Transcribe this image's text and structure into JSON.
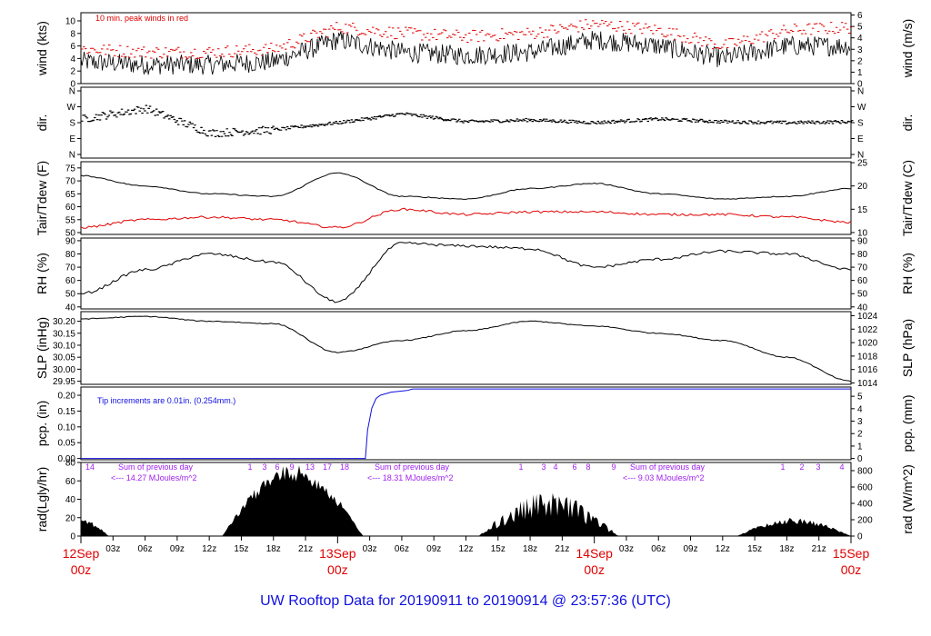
{
  "title": "UW Rooftop Data for 20190911  to  20190914 @ 23:57:36  (UTC)",
  "colors": {
    "black": "#000000",
    "red": "#e00000",
    "blue": "#1010e0",
    "purple": "#a020f0",
    "title": "#1010e0"
  },
  "x_axis": {
    "hour_ticks": [
      "03z",
      "06z",
      "09z",
      "12z",
      "15z",
      "18z",
      "21z",
      "03z",
      "06z",
      "09z",
      "12z",
      "15z",
      "18z",
      "21z",
      "03z",
      "06z",
      "09z",
      "12z",
      "15z",
      "18z",
      "21z"
    ],
    "day_ticks": [
      {
        "date": "12Sep",
        "time": "00z"
      },
      {
        "date": "13Sep",
        "time": "00z"
      },
      {
        "date": "14Sep",
        "time": "00z"
      },
      {
        "date": "15Sep",
        "time": "00z"
      }
    ]
  },
  "panels": {
    "wind": {
      "left_label": "wind (kts)",
      "right_label": "wind (m/s)",
      "left_ticks": [
        "0",
        "2",
        "4",
        "6",
        "8",
        "10"
      ],
      "right_ticks": [
        "0",
        "1",
        "2",
        "3",
        "4",
        "5",
        "6"
      ],
      "note": "10 min. peak winds in red"
    },
    "dir": {
      "left_label": "dir.",
      "right_label": "dir.",
      "left_ticks": [
        "N",
        "E",
        "S",
        "W",
        "N"
      ],
      "right_ticks": [
        "N",
        "E",
        "S",
        "W",
        "N"
      ]
    },
    "temp": {
      "left_label": "Tair/Tdew (F)",
      "right_label": "Tair/Tdew (C)",
      "left_ticks": [
        "50",
        "55",
        "60",
        "65",
        "70",
        "75"
      ],
      "right_ticks": [
        "10",
        "15",
        "20",
        "25"
      ]
    },
    "rh": {
      "left_label": "RH (%)",
      "right_label": "RH (%)",
      "left_ticks": [
        "40",
        "50",
        "60",
        "70",
        "80",
        "90"
      ],
      "right_ticks": [
        "40",
        "50",
        "60",
        "70",
        "80",
        "90"
      ]
    },
    "slp": {
      "left_label": "SLP (inHg)",
      "right_label": "SLP (hPa)",
      "left_ticks": [
        "29.95",
        "30.00",
        "30.05",
        "30.10",
        "30.15",
        "30.20"
      ],
      "right_ticks": [
        "1014",
        "1016",
        "1018",
        "1020",
        "1022",
        "1024"
      ]
    },
    "pcp": {
      "left_label": "pcp. (in)",
      "right_label": "pcp. (mm)",
      "left_ticks": [
        "0.00",
        "0.05",
        "0.10",
        "0.15",
        "0.20"
      ],
      "right_ticks": [
        "0",
        "1",
        "2",
        "3",
        "4",
        "5"
      ],
      "note": "Tip increments are 0.01in. (0.254mm.)"
    },
    "rad": {
      "left_label": "rad(Lgly/hr)",
      "right_label": "rad (W/m^2)",
      "left_ticks": [
        "0",
        "20",
        "40",
        "60",
        "80"
      ],
      "right_ticks": [
        "0",
        "200",
        "400",
        "600",
        "800"
      ],
      "day_sums": [
        {
          "line1": "Sum of previous day",
          "line2": "<--- 14.27 MJoules/m^2"
        },
        {
          "line1": "Sum of previous day",
          "line2": "<--- 18.31 MJoules/m^2"
        },
        {
          "line1": "Sum of previous day",
          "line2": "<--- 9.03 MJoules/m^2"
        }
      ],
      "hour_marks_day1": [
        "14",
        "1",
        "3",
        "6",
        "9",
        "13",
        "17",
        "18"
      ],
      "hour_marks_day2": [
        "1",
        "3",
        "4",
        "6",
        "8",
        "9"
      ],
      "hour_marks_day3": [
        "1",
        "2",
        "3",
        "4"
      ]
    }
  },
  "chart_data": [
    {
      "type": "line",
      "ylabel": "wind (kts)",
      "ylim": [
        0,
        11
      ],
      "x": [
        "12Sep 00z",
        "12Sep 06z",
        "12Sep 12z",
        "12Sep 18z",
        "13Sep 00z",
        "13Sep 06z",
        "13Sep 12z",
        "13Sep 18z",
        "14Sep 00z",
        "14Sep 06z",
        "14Sep 12z",
        "14Sep 18z",
        "15Sep 00z"
      ],
      "series": [
        {
          "color": "#000000",
          "values": [
            3.5,
            3,
            3,
            3.5,
            7,
            5,
            4.5,
            5,
            7,
            6,
            4,
            6,
            6
          ]
        },
        {
          "color": "#e00000",
          "values": [
            5.5,
            5,
            5,
            5.5,
            9,
            8,
            7.5,
            8,
            9.5,
            8.5,
            6,
            8.5,
            9
          ]
        }
      ]
    },
    {
      "type": "scatter",
      "ylabel": "dir.",
      "x": [
        "12Sep 00z",
        "12Sep 06z",
        "12Sep 12z",
        "12Sep 18z",
        "13Sep 00z",
        "13Sep 06z",
        "13Sep 12z",
        "13Sep 18z",
        "14Sep 00z",
        "14Sep 06z",
        "14Sep 12z",
        "14Sep 18z",
        "15Sep 00z"
      ],
      "series": [
        {
          "color": "#000000",
          "values": [
            "SSW",
            "WSW",
            "ESE",
            "SE",
            "S",
            "SW",
            "S",
            "SSW",
            "S",
            "SSW",
            "S",
            "S",
            "S"
          ]
        }
      ]
    },
    {
      "type": "line",
      "ylabel": "Tair/Tdew (F)",
      "ylim": [
        50,
        77
      ],
      "x": [
        "12Sep 00z",
        "12Sep 06z",
        "12Sep 12z",
        "12Sep 18z",
        "13Sep 00z",
        "13Sep 06z",
        "13Sep 12z",
        "13Sep 18z",
        "14Sep 00z",
        "14Sep 06z",
        "14Sep 12z",
        "14Sep 18z",
        "15Sep 00z"
      ],
      "series": [
        {
          "color": "#000000",
          "values": [
            72,
            68,
            65,
            64,
            73,
            64,
            63,
            67,
            69,
            65,
            63,
            64,
            67
          ]
        },
        {
          "color": "#e00000",
          "values": [
            52,
            55,
            56,
            55,
            52,
            59,
            57,
            58,
            58,
            57,
            57,
            56,
            54
          ]
        }
      ]
    },
    {
      "type": "line",
      "ylabel": "RH (%)",
      "ylim": [
        40,
        90
      ],
      "x": [
        "12Sep 00z",
        "12Sep 06z",
        "12Sep 12z",
        "12Sep 18z",
        "13Sep 00z",
        "13Sep 06z",
        "13Sep 12z",
        "13Sep 18z",
        "14Sep 00z",
        "14Sep 06z",
        "14Sep 12z",
        "14Sep 18z",
        "15Sep 00z"
      ],
      "series": [
        {
          "color": "#000000",
          "values": [
            50,
            68,
            80,
            74,
            44,
            88,
            86,
            84,
            70,
            76,
            82,
            80,
            68
          ]
        }
      ]
    },
    {
      "type": "line",
      "ylabel": "SLP (inHg)",
      "ylim": [
        29.94,
        30.24
      ],
      "x": [
        "12Sep 00z",
        "12Sep 06z",
        "12Sep 12z",
        "12Sep 18z",
        "13Sep 00z",
        "13Sep 06z",
        "13Sep 12z",
        "13Sep 18z",
        "14Sep 00z",
        "14Sep 06z",
        "14Sep 12z",
        "14Sep 18z",
        "15Sep 00z"
      ],
      "series": [
        {
          "color": "#000000",
          "values": [
            30.21,
            30.22,
            30.2,
            30.19,
            30.07,
            30.12,
            30.16,
            30.2,
            30.18,
            30.15,
            30.12,
            30.05,
            29.95
          ]
        }
      ]
    },
    {
      "type": "line",
      "ylabel": "pcp. (in)",
      "ylim": [
        0,
        0.22
      ],
      "x": [
        "12Sep 00z",
        "12Sep 06z",
        "12Sep 12z",
        "12Sep 18z",
        "13Sep 00z",
        "13Sep 03z",
        "13Sep 06z",
        "13Sep 12z",
        "14Sep 00z",
        "15Sep 00z"
      ],
      "series": [
        {
          "color": "#1010e0",
          "values": [
            0,
            0,
            0,
            0,
            0,
            0,
            0.21,
            0.22,
            0.22,
            0.22
          ]
        }
      ]
    },
    {
      "type": "area",
      "ylabel": "rad(Lgly/hr)",
      "ylim": [
        0,
        80
      ],
      "x": [
        "12Sep 00z",
        "12Sep 03z",
        "12Sep 06z",
        "12Sep 12z",
        "12Sep 15z",
        "12Sep 18z",
        "12Sep 21z",
        "13Sep 00z",
        "13Sep 03z",
        "13Sep 12z",
        "13Sep 15z",
        "13Sep 18z",
        "13Sep 21z",
        "14Sep 00z",
        "14Sep 03z",
        "14Sep 12z",
        "14Sep 15z",
        "14Sep 18z",
        "14Sep 21z",
        "15Sep 00z"
      ],
      "series": [
        {
          "color": "#000000",
          "values": [
            20,
            0,
            0,
            0,
            15,
            55,
            75,
            20,
            0,
            0,
            5,
            40,
            45,
            15,
            0,
            0,
            3,
            10,
            18,
            8
          ]
        }
      ]
    }
  ]
}
